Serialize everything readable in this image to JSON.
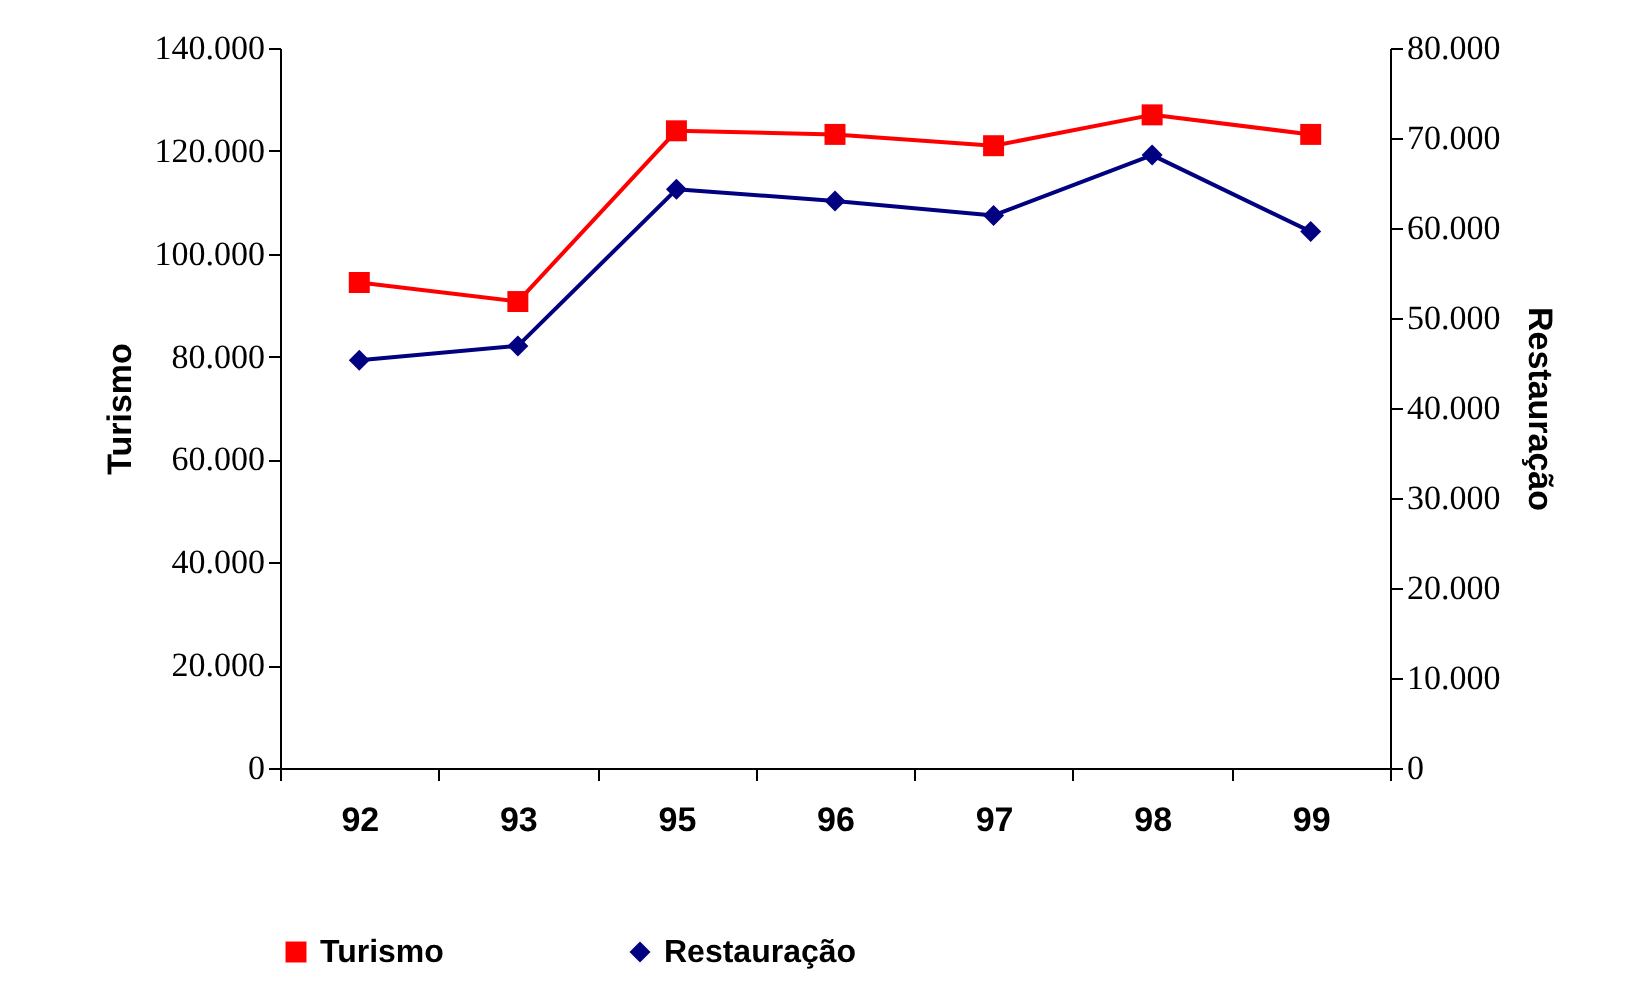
{
  "chart_data": {
    "type": "line",
    "ylabel": "Turismo",
    "y2label": "Restauração",
    "categories": [
      "92",
      "93",
      "95",
      "96",
      "97",
      "98",
      "99"
    ],
    "ylim": [
      0,
      140000
    ],
    "yticks": [
      {
        "value": 0,
        "label": "0"
      },
      {
        "value": 20000,
        "label": "20.000"
      },
      {
        "value": 40000,
        "label": "40.000"
      },
      {
        "value": 60000,
        "label": "60.000"
      },
      {
        "value": 80000,
        "label": "80.000"
      },
      {
        "value": 100000,
        "label": "100.000"
      },
      {
        "value": 120000,
        "label": "120.000"
      },
      {
        "value": 140000,
        "label": "140.000"
      }
    ],
    "y2lim": [
      0,
      80000
    ],
    "y2ticks": [
      {
        "value": 0,
        "label": "0"
      },
      {
        "value": 10000,
        "label": "10.000"
      },
      {
        "value": 20000,
        "label": "20.000"
      },
      {
        "value": 30000,
        "label": "30.000"
      },
      {
        "value": 40000,
        "label": "40.000"
      },
      {
        "value": 50000,
        "label": "50.000"
      },
      {
        "value": 60000,
        "label": "60.000"
      },
      {
        "value": 70000,
        "label": "70.000"
      },
      {
        "value": 80000,
        "label": "80.000"
      }
    ],
    "grid": false,
    "legend": "bottom",
    "series": [
      {
        "name": "Turismo",
        "color": "#ff0000",
        "marker": "square",
        "values": [
          94400,
          90700,
          123900,
          123200,
          121000,
          127000,
          123200
        ]
      },
      {
        "name": "Restauração",
        "color": "#000080",
        "marker": "diamond",
        "axis": "y2",
        "values": [
          45300,
          46900,
          64300,
          63000,
          61400,
          68100,
          59600
        ]
      }
    ]
  }
}
